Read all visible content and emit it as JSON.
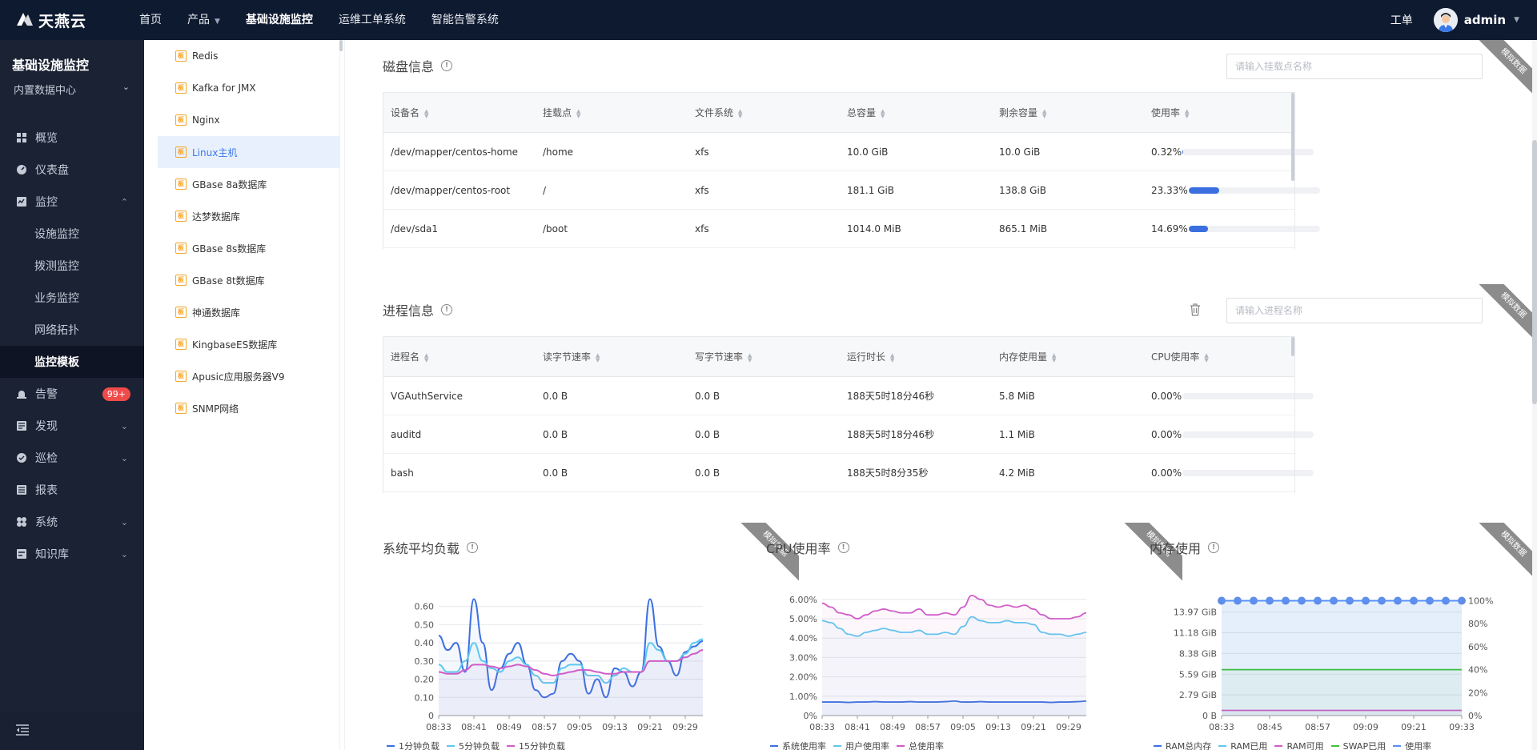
{
  "topbar": {
    "logo_text": "天燕云",
    "nav": [
      {
        "label": "首页",
        "caret": false,
        "active": false
      },
      {
        "label": "产品",
        "caret": true,
        "active": false
      },
      {
        "label": "基础设施监控",
        "caret": false,
        "active": true
      },
      {
        "label": "运维工单系统",
        "caret": false,
        "active": false
      },
      {
        "label": "智能告警系统",
        "caret": false,
        "active": false
      }
    ],
    "workorder": "工单",
    "username": "admin"
  },
  "sidebar": {
    "title": "基础设施监控",
    "datacenter": "内置数据中心",
    "menu": [
      {
        "label": "概览",
        "icon": "grid-icon",
        "type": "top"
      },
      {
        "label": "仪表盘",
        "icon": "dashboard-icon",
        "type": "top"
      },
      {
        "label": "监控",
        "icon": "monitor-icon",
        "type": "top",
        "expanded": true
      },
      {
        "label": "设施监控",
        "type": "sub"
      },
      {
        "label": "拨测监控",
        "type": "sub"
      },
      {
        "label": "业务监控",
        "type": "sub"
      },
      {
        "label": "网络拓扑",
        "type": "sub"
      },
      {
        "label": "监控模板",
        "type": "sub",
        "active": true
      },
      {
        "label": "告警",
        "icon": "alarm-icon",
        "type": "top",
        "badge": "99+"
      },
      {
        "label": "发现",
        "icon": "discover-icon",
        "type": "top",
        "chevron": true
      },
      {
        "label": "巡检",
        "icon": "inspect-icon",
        "type": "top",
        "chevron": true
      },
      {
        "label": "报表",
        "icon": "report-icon",
        "type": "top"
      },
      {
        "label": "系统",
        "icon": "system-icon",
        "type": "top",
        "chevron": true
      },
      {
        "label": "知识库",
        "icon": "knowledge-icon",
        "type": "top",
        "chevron": true
      }
    ]
  },
  "templates": [
    {
      "label": "Redis"
    },
    {
      "label": "Kafka for JMX"
    },
    {
      "label": "Nginx"
    },
    {
      "label": "Linux主机",
      "active": true
    },
    {
      "label": "GBase 8a数据库"
    },
    {
      "label": "达梦数据库"
    },
    {
      "label": "GBase 8s数据库"
    },
    {
      "label": "GBase 8t数据库"
    },
    {
      "label": "神通数据库"
    },
    {
      "label": "KingbaseES数据库"
    },
    {
      "label": "Apusic应用服务器V9"
    },
    {
      "label": "SNMP网络"
    }
  ],
  "template_icon_char": "板",
  "ribbon_text": "模拟数据",
  "disk": {
    "title": "磁盘信息",
    "search_placeholder": "请输入挂载点名称",
    "columns": [
      "设备名",
      "挂载点",
      "文件系统",
      "总容量",
      "剩余容量",
      "使用率"
    ],
    "rows": [
      {
        "device": "/dev/mapper/centos-home",
        "mount": "/home",
        "fs": "xfs",
        "total": "10.0 GiB",
        "free": "10.0 GiB",
        "usage": "0.32%",
        "usage_value": 0.32
      },
      {
        "device": "/dev/mapper/centos-root",
        "mount": "/",
        "fs": "xfs",
        "total": "181.1 GiB",
        "free": "138.8 GiB",
        "usage": "23.33%",
        "usage_value": 23.33
      },
      {
        "device": "/dev/sda1",
        "mount": "/boot",
        "fs": "xfs",
        "total": "1014.0 MiB",
        "free": "865.1 MiB",
        "usage": "14.69%",
        "usage_value": 14.69
      }
    ]
  },
  "process": {
    "title": "进程信息",
    "search_placeholder": "请输入进程名称",
    "columns": [
      "进程名",
      "读字节速率",
      "写字节速率",
      "运行时长",
      "内存使用量",
      "CPU使用率"
    ],
    "rows": [
      {
        "name": "VGAuthService",
        "read": "0.0 B",
        "write": "0.0 B",
        "uptime": "188天5时18分46秒",
        "mem": "5.8 MiB",
        "cpu": "0.00%",
        "cpu_value": 0
      },
      {
        "name": "auditd",
        "read": "0.0 B",
        "write": "0.0 B",
        "uptime": "188天5时18分46秒",
        "mem": "1.1 MiB",
        "cpu": "0.00%",
        "cpu_value": 0
      },
      {
        "name": "bash",
        "read": "0.0 B",
        "write": "0.0 B",
        "uptime": "188天5时8分35秒",
        "mem": "4.2 MiB",
        "cpu": "0.00%",
        "cpu_value": 0
      }
    ]
  },
  "chart_data": [
    {
      "type": "line",
      "title": "系统平均负载",
      "x": [
        "08:33",
        "08:35",
        "08:37",
        "08:39",
        "08:41",
        "08:43",
        "08:45",
        "08:47",
        "08:49",
        "08:51",
        "08:53",
        "08:55",
        "08:57",
        "08:59",
        "09:01",
        "09:03",
        "09:05",
        "09:07",
        "09:09",
        "09:11",
        "09:13",
        "09:15",
        "09:17",
        "09:19",
        "09:21",
        "09:23",
        "09:25",
        "09:27",
        "09:29",
        "09:31",
        "09:33"
      ],
      "xticks": [
        "08:33",
        "08:41",
        "08:49",
        "08:57",
        "09:05",
        "09:13",
        "09:21",
        "09:29"
      ],
      "yticks": [
        "0",
        "0.10",
        "0.20",
        "0.30",
        "0.40",
        "0.50",
        "0.60"
      ],
      "ylim": [
        0,
        0.66
      ],
      "series": [
        {
          "name": "1分钟负载",
          "color": "#3b6fe0",
          "values": [
            0.44,
            0.36,
            0.4,
            0.24,
            0.64,
            0.4,
            0.14,
            0.26,
            0.34,
            0.4,
            0.28,
            0.14,
            0.1,
            0.12,
            0.3,
            0.34,
            0.3,
            0.12,
            0.2,
            0.1,
            0.26,
            0.24,
            0.16,
            0.24,
            0.64,
            0.38,
            0.3,
            0.22,
            0.35,
            0.38,
            0.41
          ]
        },
        {
          "name": "5分钟负载",
          "color": "#5ec8f0",
          "values": [
            0.28,
            0.24,
            0.24,
            0.3,
            0.4,
            0.3,
            0.26,
            0.24,
            0.3,
            0.32,
            0.28,
            0.22,
            0.18,
            0.18,
            0.26,
            0.28,
            0.28,
            0.22,
            0.22,
            0.18,
            0.22,
            0.26,
            0.24,
            0.24,
            0.4,
            0.36,
            0.3,
            0.3,
            0.34,
            0.4,
            0.42
          ]
        },
        {
          "name": "15分钟负载",
          "color": "#d05cc8",
          "values": [
            0.24,
            0.23,
            0.23,
            0.25,
            0.28,
            0.28,
            0.27,
            0.26,
            0.27,
            0.28,
            0.27,
            0.25,
            0.23,
            0.22,
            0.23,
            0.24,
            0.25,
            0.25,
            0.24,
            0.23,
            0.23,
            0.24,
            0.24,
            0.24,
            0.3,
            0.3,
            0.3,
            0.3,
            0.32,
            0.34,
            0.36
          ]
        }
      ]
    },
    {
      "type": "line",
      "title": "CPU使用率",
      "x": [
        "08:33",
        "08:35",
        "08:37",
        "08:39",
        "08:41",
        "08:43",
        "08:45",
        "08:47",
        "08:49",
        "08:51",
        "08:53",
        "08:55",
        "08:57",
        "08:59",
        "09:01",
        "09:03",
        "09:05",
        "09:07",
        "09:09",
        "09:11",
        "09:13",
        "09:15",
        "09:17",
        "09:19",
        "09:21",
        "09:23",
        "09:25",
        "09:27",
        "09:29",
        "09:31",
        "09:33"
      ],
      "xticks": [
        "08:33",
        "08:41",
        "08:49",
        "08:57",
        "09:05",
        "09:13",
        "09:21",
        "09:29"
      ],
      "yticks": [
        "0%",
        "1.00%",
        "2.00%",
        "3.00%",
        "4.00%",
        "5.00%",
        "6.00%"
      ],
      "ylim": [
        0,
        6.2
      ],
      "series": [
        {
          "name": "系统使用率",
          "color": "#3b6fe0",
          "values": [
            0.7,
            0.7,
            0.7,
            0.68,
            0.7,
            0.7,
            0.72,
            0.7,
            0.7,
            0.7,
            0.72,
            0.7,
            0.7,
            0.7,
            0.72,
            0.75,
            0.7,
            0.7,
            0.72,
            0.7,
            0.7,
            0.7,
            0.7,
            0.7,
            0.7,
            0.7,
            0.68,
            0.7,
            0.7,
            0.72,
            0.75
          ]
        },
        {
          "name": "用户使用率",
          "color": "#5ec8f0",
          "values": [
            4.9,
            4.8,
            4.5,
            4.2,
            4.1,
            4.3,
            4.4,
            4.5,
            4.4,
            4.3,
            4.3,
            4.4,
            4.2,
            4.2,
            4.3,
            4.2,
            4.6,
            5.1,
            4.9,
            4.8,
            4.8,
            4.9,
            4.8,
            4.8,
            4.7,
            4.3,
            4.2,
            4.2,
            4.1,
            4.2,
            4.3
          ]
        },
        {
          "name": "总使用率",
          "color": "#d05cc8",
          "values": [
            5.8,
            5.6,
            5.3,
            5.2,
            5.0,
            5.2,
            5.4,
            5.5,
            5.4,
            5.3,
            5.3,
            5.5,
            5.2,
            5.2,
            5.3,
            5.2,
            5.6,
            6.2,
            6.0,
            5.7,
            5.6,
            5.7,
            5.6,
            5.7,
            5.5,
            5.2,
            5.0,
            5.0,
            5.0,
            5.1,
            5.3
          ]
        }
      ]
    },
    {
      "type": "line",
      "title": "内存使用",
      "x": [
        "08:33",
        "08:35",
        "08:37",
        "08:39",
        "08:41",
        "08:43",
        "08:45",
        "08:47",
        "08:49",
        "08:51",
        "08:53",
        "08:55",
        "08:57",
        "08:59",
        "09:01",
        "09:03",
        "09:05",
        "09:07",
        "09:09",
        "09:11",
        "09:13",
        "09:15",
        "09:17",
        "09:19",
        "09:21",
        "09:23",
        "09:25",
        "09:27",
        "09:29",
        "09:31",
        "09:33"
      ],
      "xticks": [
        "08:33",
        "08:45",
        "08:57",
        "09:09",
        "09:21",
        "09:33"
      ],
      "yticks": [
        "0 B",
        "2.79 GiB",
        "5.59 GiB",
        "8.38 GiB",
        "11.18 GiB",
        "13.97 GiB"
      ],
      "yticks_right": [
        "0%",
        "20%",
        "40%",
        "60%",
        "80%",
        "100%"
      ],
      "ylim": [
        0,
        16.2
      ],
      "series": [
        {
          "name": "RAM总内存",
          "color": "#3b6fe0",
          "unit": "GiB",
          "values": [
            15.5,
            15.5,
            15.5,
            15.5,
            15.5,
            15.5,
            15.5,
            15.5,
            15.5,
            15.5,
            15.5,
            15.5,
            15.5,
            15.5,
            15.5,
            15.5,
            15.5,
            15.5,
            15.5,
            15.5,
            15.5,
            15.5,
            15.5,
            15.5,
            15.5,
            15.5,
            15.5,
            15.5,
            15.5,
            15.5,
            15.5
          ]
        },
        {
          "name": "RAM已用",
          "color": "#5ec8f0",
          "unit": "GiB",
          "values": [
            15.5,
            15.5,
            15.5,
            15.5,
            15.5,
            15.5,
            15.5,
            15.5,
            15.5,
            15.5,
            15.5,
            15.5,
            15.5,
            15.5,
            15.5,
            15.5,
            15.5,
            15.5,
            15.5,
            15.5,
            15.5,
            15.5,
            15.5,
            15.5,
            15.5,
            15.5,
            15.5,
            15.5,
            15.5,
            15.5,
            15.5
          ]
        },
        {
          "name": "RAM可用",
          "color": "#d05cc8",
          "unit": "GiB",
          "values": [
            0.7,
            0.7,
            0.7,
            0.7,
            0.7,
            0.7,
            0.7,
            0.7,
            0.7,
            0.7,
            0.7,
            0.7,
            0.7,
            0.7,
            0.7,
            0.7,
            0.7,
            0.7,
            0.7,
            0.7,
            0.7,
            0.7,
            0.7,
            0.7,
            0.7,
            0.7,
            0.7,
            0.7,
            0.7,
            0.7,
            0.7
          ]
        },
        {
          "name": "SWAP已用",
          "color": "#3cc13c",
          "unit": "GiB",
          "values": [
            6.2,
            6.2,
            6.2,
            6.2,
            6.2,
            6.2,
            6.2,
            6.2,
            6.2,
            6.2,
            6.2,
            6.2,
            6.2,
            6.2,
            6.2,
            6.2,
            6.2,
            6.2,
            6.2,
            6.2,
            6.2,
            6.2,
            6.2,
            6.2,
            6.2,
            6.2,
            6.2,
            6.2,
            6.2,
            6.2,
            6.2
          ]
        },
        {
          "name": "使用率",
          "color": "#5b8ff5",
          "unit": "%",
          "values": [
            96,
            96,
            96,
            96,
            96,
            96,
            96,
            96,
            96,
            96,
            96,
            96,
            96,
            96,
            96,
            96,
            96,
            96,
            96,
            96,
            96,
            96,
            96,
            96,
            96,
            96,
            96,
            96,
            96,
            96,
            96
          ]
        }
      ]
    }
  ]
}
